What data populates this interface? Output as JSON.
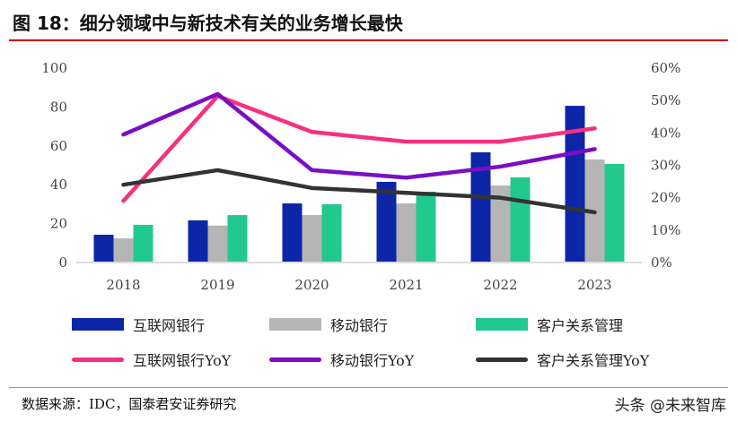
{
  "title": "图 18：细分领域中与新技术有关的业务增长最快",
  "source": "数据来源：IDC，国泰君安证券研究",
  "watermark": "头条 @未来智库",
  "chart_data": {
    "type": "bar+line",
    "categories": [
      "2018",
      "2019",
      "2020",
      "2021",
      "2022",
      "2023"
    ],
    "left_axis": {
      "ylim": [
        0,
        100
      ],
      "ticks": [
        "0",
        "20",
        "40",
        "60",
        "80",
        "100"
      ]
    },
    "right_axis": {
      "ylim": [
        0,
        60
      ],
      "ticks": [
        "0%",
        "10%",
        "20%",
        "30%",
        "40%",
        "50%",
        "60%"
      ]
    },
    "bars": [
      {
        "name": "互联网银行",
        "color": "#0d26a8",
        "values": [
          14.3,
          21.7,
          30.4,
          41.5,
          56.7,
          80.6
        ]
      },
      {
        "name": "移动银行",
        "color": "#b5b5b5",
        "values": [
          12.4,
          19,
          24.4,
          30.4,
          39.6,
          53
        ]
      },
      {
        "name": "客户关系管理",
        "color": "#22c98e",
        "values": [
          19.4,
          24.4,
          30,
          36.4,
          43.8,
          50.7
        ]
      }
    ],
    "lines": [
      {
        "name": "互联网银行YoY",
        "color": "#f5317f",
        "values": [
          19,
          51.4,
          40.3,
          37.3,
          37.3,
          41.4
        ]
      },
      {
        "name": "移动银行YoY",
        "color": "#7a0ec2",
        "values": [
          39.5,
          52,
          28.5,
          26.2,
          29.6,
          35
        ]
      },
      {
        "name": "客户关系管理YoY",
        "color": "#333333",
        "values": [
          24,
          28.5,
          23,
          21.5,
          20,
          15.5
        ]
      }
    ],
    "legend_position": "bottom"
  }
}
